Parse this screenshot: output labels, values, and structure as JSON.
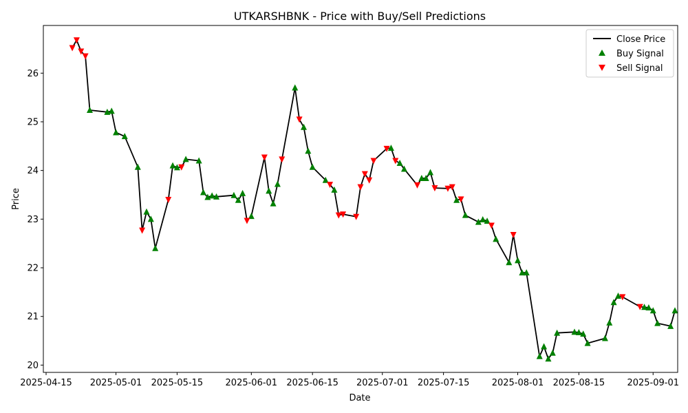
{
  "chart_data": {
    "type": "line",
    "title": "UTKARSHBNK - Price with Buy/Sell Predictions",
    "xlabel": "Date",
    "ylabel": "Price",
    "x_range": [
      "2025-04-15",
      "2025-09-06"
    ],
    "ylim": [
      19.85,
      26.98
    ],
    "x_ticks": [
      "2025-04-15",
      "2025-05-01",
      "2025-05-15",
      "2025-06-01",
      "2025-06-15",
      "2025-07-01",
      "2025-07-15",
      "2025-08-01",
      "2025-08-15",
      "2025-09-01"
    ],
    "y_ticks": [
      20,
      21,
      22,
      23,
      24,
      25,
      26
    ],
    "grid": false,
    "legend_position": "top-right",
    "colors": {
      "close_line": "#000000",
      "buy": "#008000",
      "sell": "#ff0000"
    },
    "series": [
      {
        "name": "Close Price",
        "kind": "line",
        "points": [
          [
            "2025-04-21",
            26.52
          ],
          [
            "2025-04-22",
            26.68
          ],
          [
            "2025-04-23",
            26.45
          ],
          [
            "2025-04-24",
            26.35
          ],
          [
            "2025-04-25",
            25.24
          ],
          [
            "2025-04-29",
            25.2
          ],
          [
            "2025-04-30",
            25.22
          ],
          [
            "2025-05-01",
            24.78
          ],
          [
            "2025-05-03",
            24.7
          ],
          [
            "2025-05-06",
            24.07
          ],
          [
            "2025-05-07",
            22.77
          ],
          [
            "2025-05-08",
            23.15
          ],
          [
            "2025-05-09",
            23.0
          ],
          [
            "2025-05-10",
            22.4
          ],
          [
            "2025-05-13",
            23.4
          ],
          [
            "2025-05-14",
            24.1
          ],
          [
            "2025-05-15",
            24.06
          ],
          [
            "2025-05-16",
            24.07
          ],
          [
            "2025-05-17",
            24.23
          ],
          [
            "2025-05-20",
            24.2
          ],
          [
            "2025-05-21",
            23.55
          ],
          [
            "2025-05-22",
            23.45
          ],
          [
            "2025-05-23",
            23.48
          ],
          [
            "2025-05-24",
            23.46
          ],
          [
            "2025-05-28",
            23.49
          ],
          [
            "2025-05-29",
            23.39
          ],
          [
            "2025-05-30",
            23.53
          ],
          [
            "2025-05-31",
            22.97
          ],
          [
            "2025-06-01",
            23.06
          ],
          [
            "2025-06-04",
            24.27
          ],
          [
            "2025-06-05",
            23.58
          ],
          [
            "2025-06-06",
            23.32
          ],
          [
            "2025-06-07",
            23.72
          ],
          [
            "2025-06-08",
            24.23
          ],
          [
            "2025-06-11",
            25.7
          ],
          [
            "2025-06-12",
            25.05
          ],
          [
            "2025-06-13",
            24.89
          ],
          [
            "2025-06-14",
            24.4
          ],
          [
            "2025-06-15",
            24.07
          ],
          [
            "2025-06-18",
            23.8
          ],
          [
            "2025-06-19",
            23.71
          ],
          [
            "2025-06-20",
            23.6
          ],
          [
            "2025-06-21",
            23.08
          ],
          [
            "2025-06-22",
            23.1
          ],
          [
            "2025-06-25",
            23.05
          ],
          [
            "2025-06-26",
            23.66
          ],
          [
            "2025-06-27",
            23.93
          ],
          [
            "2025-06-28",
            23.8
          ],
          [
            "2025-06-29",
            24.2
          ],
          [
            "2025-07-02",
            24.45
          ],
          [
            "2025-07-03",
            24.46
          ],
          [
            "2025-07-04",
            24.2
          ],
          [
            "2025-07-05",
            24.15
          ],
          [
            "2025-07-06",
            24.03
          ],
          [
            "2025-07-09",
            23.7
          ],
          [
            "2025-07-10",
            23.84
          ],
          [
            "2025-07-11",
            23.84
          ],
          [
            "2025-07-12",
            23.96
          ],
          [
            "2025-07-13",
            23.64
          ],
          [
            "2025-07-16",
            23.63
          ],
          [
            "2025-07-17",
            23.66
          ],
          [
            "2025-07-18",
            23.39
          ],
          [
            "2025-07-19",
            23.41
          ],
          [
            "2025-07-20",
            23.08
          ],
          [
            "2025-07-23",
            22.94
          ],
          [
            "2025-07-24",
            22.99
          ],
          [
            "2025-07-25",
            22.96
          ],
          [
            "2025-07-26",
            22.87
          ],
          [
            "2025-07-27",
            22.59
          ],
          [
            "2025-07-30",
            22.11
          ],
          [
            "2025-07-31",
            22.68
          ],
          [
            "2025-08-01",
            22.15
          ],
          [
            "2025-08-02",
            21.9
          ],
          [
            "2025-08-03",
            21.9
          ],
          [
            "2025-08-06",
            20.18
          ],
          [
            "2025-08-07",
            20.38
          ],
          [
            "2025-08-08",
            20.13
          ],
          [
            "2025-08-09",
            20.25
          ],
          [
            "2025-08-10",
            20.66
          ],
          [
            "2025-08-14",
            20.68
          ],
          [
            "2025-08-15",
            20.67
          ],
          [
            "2025-08-16",
            20.64
          ],
          [
            "2025-08-17",
            20.45
          ],
          [
            "2025-08-21",
            20.55
          ],
          [
            "2025-08-22",
            20.87
          ],
          [
            "2025-08-23",
            21.29
          ],
          [
            "2025-08-24",
            21.42
          ],
          [
            "2025-08-25",
            21.4
          ],
          [
            "2025-08-29",
            21.2
          ],
          [
            "2025-08-30",
            21.19
          ],
          [
            "2025-08-31",
            21.18
          ],
          [
            "2025-09-01",
            21.12
          ],
          [
            "2025-09-02",
            20.86
          ],
          [
            "2025-09-05",
            20.8
          ],
          [
            "2025-09-06",
            21.12
          ]
        ]
      },
      {
        "name": "Buy Signal",
        "kind": "marker-up",
        "points": [
          [
            "2025-04-25",
            25.24
          ],
          [
            "2025-04-29",
            25.2
          ],
          [
            "2025-04-30",
            25.22
          ],
          [
            "2025-05-01",
            24.78
          ],
          [
            "2025-05-03",
            24.7
          ],
          [
            "2025-05-06",
            24.07
          ],
          [
            "2025-05-08",
            23.15
          ],
          [
            "2025-05-09",
            23.0
          ],
          [
            "2025-05-10",
            22.4
          ],
          [
            "2025-05-14",
            24.1
          ],
          [
            "2025-05-15",
            24.06
          ],
          [
            "2025-05-17",
            24.23
          ],
          [
            "2025-05-20",
            24.2
          ],
          [
            "2025-05-21",
            23.55
          ],
          [
            "2025-05-22",
            23.45
          ],
          [
            "2025-05-23",
            23.48
          ],
          [
            "2025-05-24",
            23.46
          ],
          [
            "2025-05-28",
            23.49
          ],
          [
            "2025-05-29",
            23.39
          ],
          [
            "2025-05-30",
            23.53
          ],
          [
            "2025-06-01",
            23.06
          ],
          [
            "2025-06-05",
            23.58
          ],
          [
            "2025-06-06",
            23.32
          ],
          [
            "2025-06-07",
            23.72
          ],
          [
            "2025-06-11",
            25.7
          ],
          [
            "2025-06-13",
            24.89
          ],
          [
            "2025-06-14",
            24.4
          ],
          [
            "2025-06-15",
            24.07
          ],
          [
            "2025-06-18",
            23.8
          ],
          [
            "2025-06-20",
            23.6
          ],
          [
            "2025-07-03",
            24.46
          ],
          [
            "2025-07-05",
            24.15
          ],
          [
            "2025-07-06",
            24.03
          ],
          [
            "2025-07-10",
            23.84
          ],
          [
            "2025-07-11",
            23.84
          ],
          [
            "2025-07-12",
            23.96
          ],
          [
            "2025-07-18",
            23.39
          ],
          [
            "2025-07-20",
            23.08
          ],
          [
            "2025-07-23",
            22.94
          ],
          [
            "2025-07-24",
            22.99
          ],
          [
            "2025-07-25",
            22.96
          ],
          [
            "2025-07-27",
            22.59
          ],
          [
            "2025-07-30",
            22.11
          ],
          [
            "2025-08-01",
            22.15
          ],
          [
            "2025-08-02",
            21.9
          ],
          [
            "2025-08-03",
            21.9
          ],
          [
            "2025-08-06",
            20.18
          ],
          [
            "2025-08-07",
            20.38
          ],
          [
            "2025-08-08",
            20.13
          ],
          [
            "2025-08-09",
            20.25
          ],
          [
            "2025-08-10",
            20.66
          ],
          [
            "2025-08-14",
            20.68
          ],
          [
            "2025-08-15",
            20.67
          ],
          [
            "2025-08-16",
            20.64
          ],
          [
            "2025-08-17",
            20.45
          ],
          [
            "2025-08-21",
            20.55
          ],
          [
            "2025-08-22",
            20.87
          ],
          [
            "2025-08-23",
            21.29
          ],
          [
            "2025-08-24",
            21.42
          ],
          [
            "2025-08-30",
            21.19
          ],
          [
            "2025-08-31",
            21.18
          ],
          [
            "2025-09-01",
            21.12
          ],
          [
            "2025-09-02",
            20.86
          ],
          [
            "2025-09-05",
            20.8
          ],
          [
            "2025-09-06",
            21.12
          ]
        ]
      },
      {
        "name": "Sell Signal",
        "kind": "marker-down",
        "points": [
          [
            "2025-04-21",
            26.52
          ],
          [
            "2025-04-22",
            26.68
          ],
          [
            "2025-04-23",
            26.45
          ],
          [
            "2025-04-24",
            26.35
          ],
          [
            "2025-05-07",
            22.77
          ],
          [
            "2025-05-13",
            23.4
          ],
          [
            "2025-05-16",
            24.07
          ],
          [
            "2025-05-31",
            22.97
          ],
          [
            "2025-06-04",
            24.27
          ],
          [
            "2025-06-08",
            24.23
          ],
          [
            "2025-06-12",
            25.05
          ],
          [
            "2025-06-19",
            23.71
          ],
          [
            "2025-06-21",
            23.08
          ],
          [
            "2025-06-22",
            23.1
          ],
          [
            "2025-06-25",
            23.05
          ],
          [
            "2025-06-26",
            23.66
          ],
          [
            "2025-06-27",
            23.93
          ],
          [
            "2025-06-28",
            23.8
          ],
          [
            "2025-06-29",
            24.2
          ],
          [
            "2025-07-02",
            24.45
          ],
          [
            "2025-07-04",
            24.2
          ],
          [
            "2025-07-09",
            23.7
          ],
          [
            "2025-07-13",
            23.64
          ],
          [
            "2025-07-16",
            23.63
          ],
          [
            "2025-07-17",
            23.66
          ],
          [
            "2025-07-19",
            23.41
          ],
          [
            "2025-07-26",
            22.87
          ],
          [
            "2025-07-31",
            22.68
          ],
          [
            "2025-08-25",
            21.4
          ],
          [
            "2025-08-29",
            21.2
          ]
        ]
      }
    ]
  }
}
